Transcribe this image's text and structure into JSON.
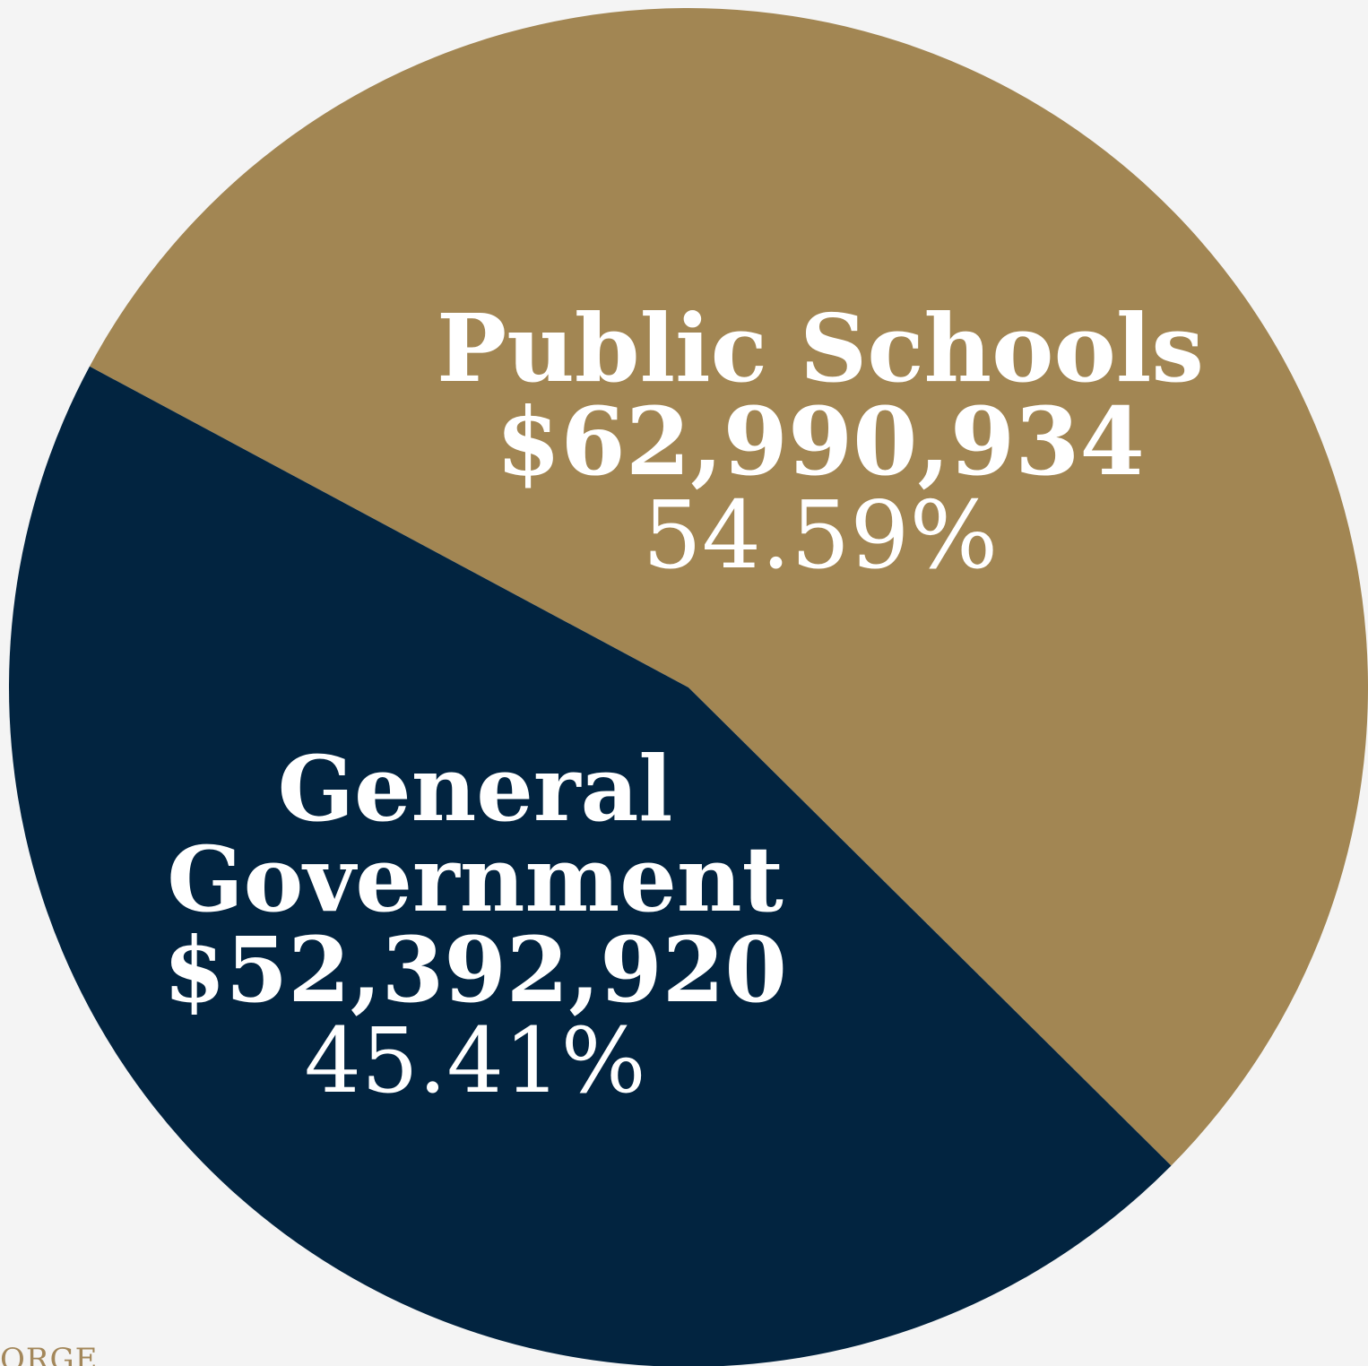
{
  "chart_data": {
    "type": "pie",
    "title": "",
    "slices": [
      {
        "label_lines": [
          "Public Schools"
        ],
        "amount": "$62,990,934",
        "value": 62990934,
        "percent": "54.59%",
        "color": "#a28653"
      },
      {
        "label_lines": [
          "General",
          "Government"
        ],
        "amount": "$52,392,920",
        "value": 52392920,
        "percent": "45.41%",
        "color": "#022440"
      }
    ]
  },
  "watermark": "ORGE"
}
